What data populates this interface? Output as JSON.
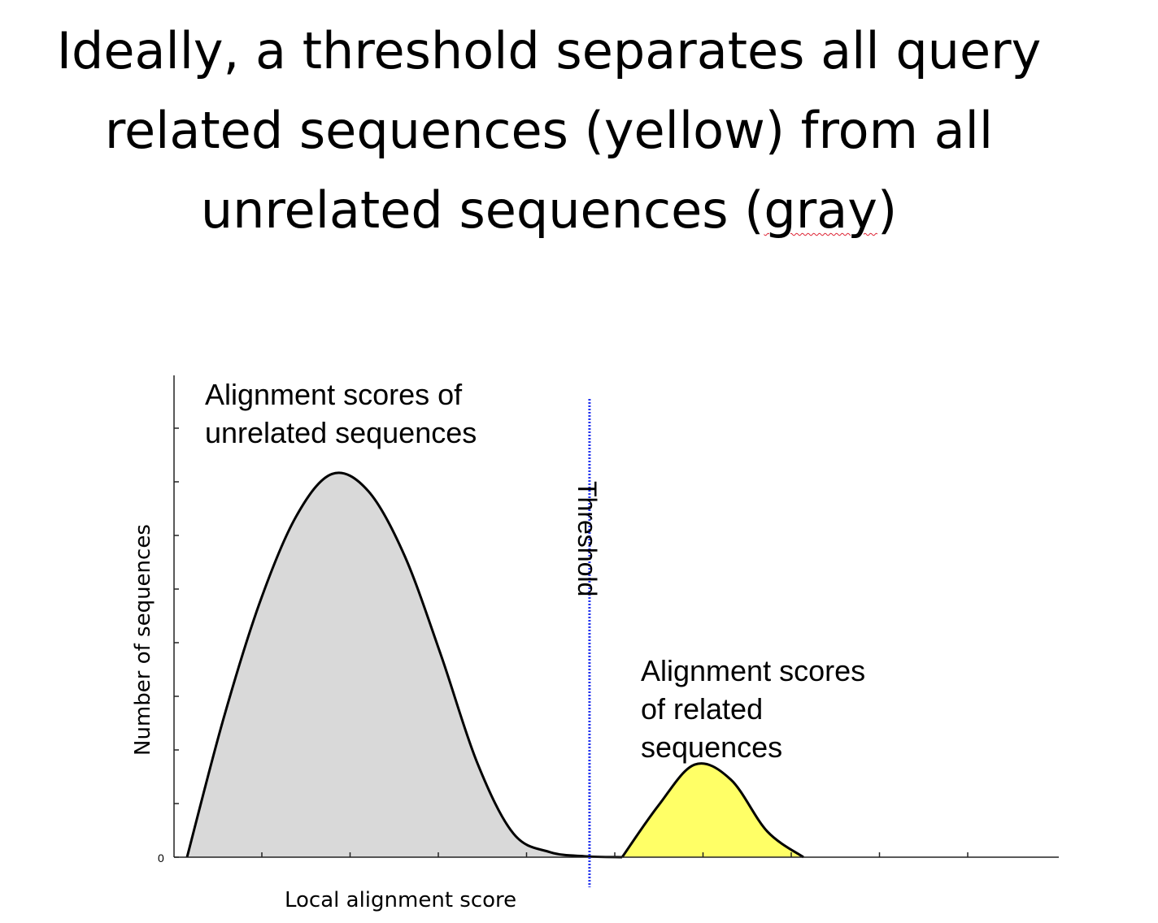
{
  "title": {
    "line1": "Ideally, a threshold separates all query",
    "line2": "related sequences (yellow) from all",
    "line3_pre": "unrelated sequences (",
    "line3_word": "gray",
    "line3_post": ")"
  },
  "chart_data": {
    "type": "area",
    "xlabel": "Local alignment score",
    "ylabel": "Number of sequences",
    "y_tick_labels": [
      "0"
    ],
    "x_tick_count": 9,
    "y_tick_count": 9,
    "grid": false,
    "series": [
      {
        "name": "Alignment scores of unrelated sequences",
        "color": "#d9d9d9",
        "x": [
          0,
          20,
          40,
          60,
          80,
          100,
          120,
          140,
          160,
          180,
          200,
          220,
          240
        ],
        "y": [
          0,
          3.2,
          5.9,
          7.9,
          8.9,
          8.5,
          7.0,
          4.7,
          2.2,
          0.55,
          0.12,
          0.02,
          0
        ]
      },
      {
        "name": "Alignment scores of related sequences",
        "color": "#ffff66",
        "x": [
          240,
          260,
          280,
          300,
          320,
          340
        ],
        "y": [
          0,
          1.2,
          2.15,
          1.8,
          0.6,
          0
        ]
      }
    ],
    "threshold": {
      "label": "Threshold",
      "x": 222,
      "color": "#2233ee"
    },
    "annotations": {
      "unrelated": [
        "Alignment scores of",
        "unrelated sequences"
      ],
      "related": [
        "Alignment scores",
        "of related",
        "sequences"
      ]
    }
  }
}
